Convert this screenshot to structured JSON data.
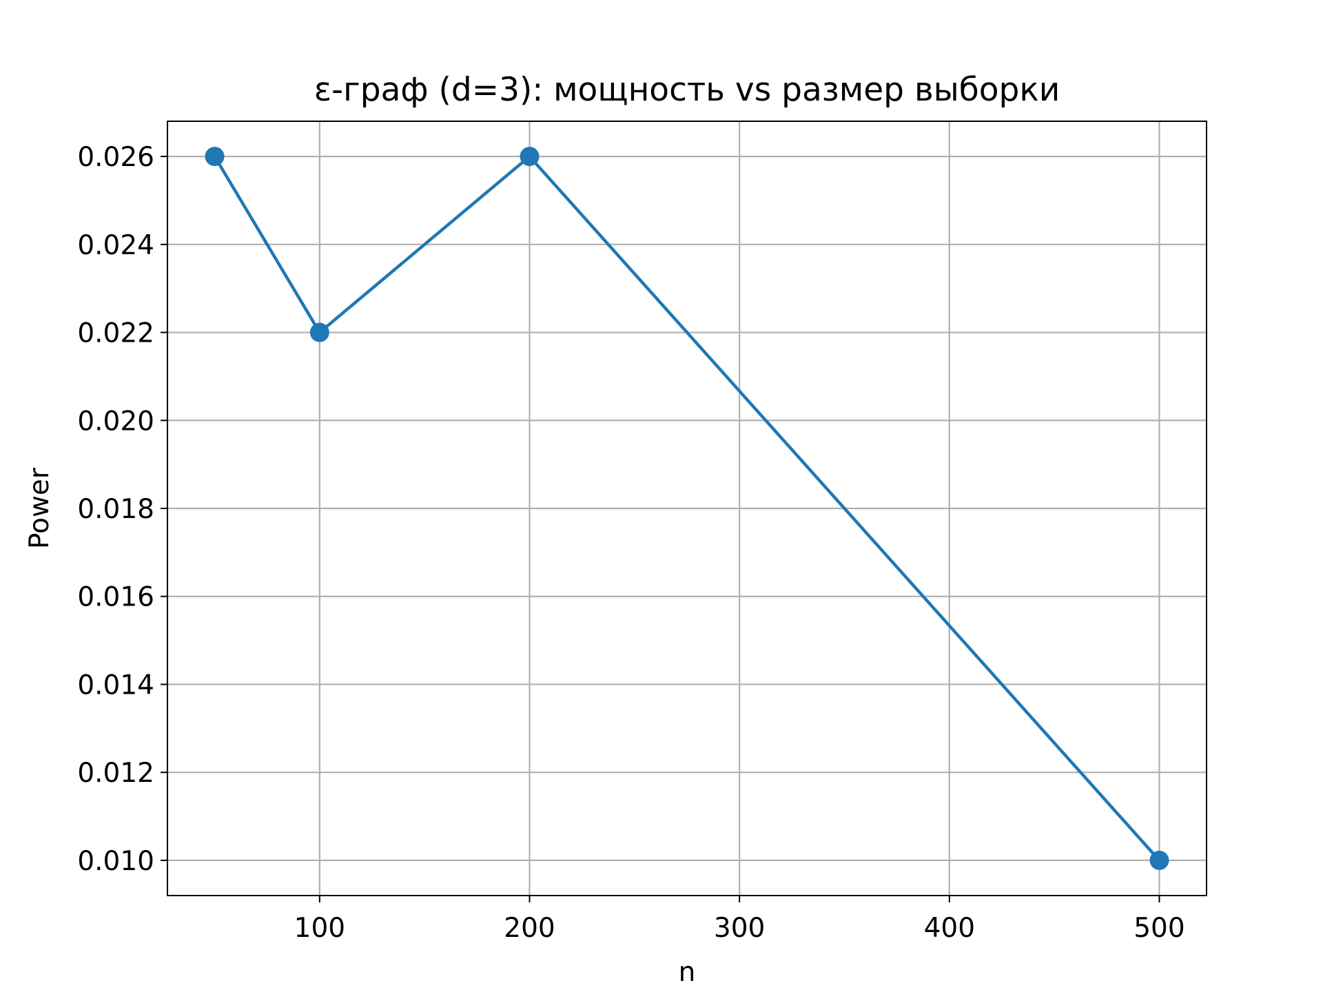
{
  "chart_data": {
    "type": "line",
    "title": "ε-граф (d=3): мощность vs размер выборки",
    "xlabel": "n",
    "ylabel": "Power",
    "xlim": [
      27.5,
      522.5
    ],
    "ylim": [
      0.0092,
      0.0268
    ],
    "xticks": [
      100,
      200,
      300,
      400,
      500
    ],
    "xtick_labels": [
      "100",
      "200",
      "300",
      "400",
      "500"
    ],
    "yticks": [
      0.01,
      0.012,
      0.014,
      0.016,
      0.018,
      0.02,
      0.022,
      0.024,
      0.026
    ],
    "ytick_labels": [
      "0.010",
      "0.012",
      "0.014",
      "0.016",
      "0.018",
      "0.020",
      "0.022",
      "0.024",
      "0.026"
    ],
    "grid": true,
    "legend": "none",
    "series": [
      {
        "x": [
          50,
          100,
          200,
          500
        ],
        "values": [
          0.026,
          0.022,
          0.026,
          0.01
        ],
        "color": "#1f77b4",
        "marker": "circle"
      }
    ]
  }
}
